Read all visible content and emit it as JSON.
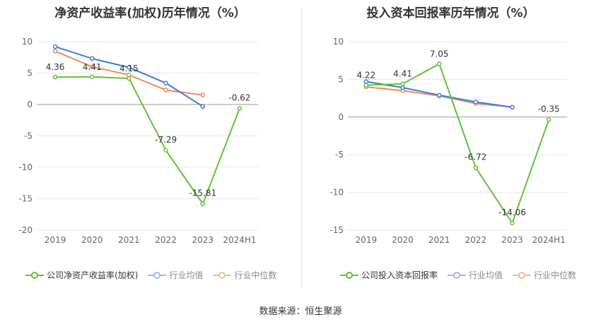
{
  "source_label": "数据来源：恒生聚源",
  "chart_data": [
    {
      "type": "line",
      "title": "净资产收益率(加权)历年情况（%）",
      "categories": [
        "2019",
        "2020",
        "2021",
        "2022",
        "2023",
        "2024H1"
      ],
      "ylim": [
        -20,
        10
      ],
      "yticks": [
        10,
        5,
        0,
        -5,
        -10,
        -15,
        -20
      ],
      "grid": true,
      "legend_position": "bottom",
      "series": [
        {
          "name": "公司净资产收益率(加权)",
          "color": "#5ec437",
          "values": [
            4.36,
            4.41,
            4.15,
            -7.29,
            -15.81,
            -0.62
          ],
          "labels": [
            "4.36",
            "4.41",
            "4.15",
            "-7.29",
            "-15.81",
            "-0.62"
          ]
        },
        {
          "name": "行业均值",
          "color": "#3b7ddd",
          "values": [
            9.2,
            7.3,
            5.9,
            3.4,
            -0.3,
            null
          ]
        },
        {
          "name": "行业中位数",
          "color": "#f08a5d",
          "values": [
            8.5,
            6.0,
            4.7,
            2.3,
            1.5,
            null
          ]
        }
      ]
    },
    {
      "type": "line",
      "title": "投入资本回报率历年情况（%）",
      "categories": [
        "2019",
        "2020",
        "2021",
        "2022",
        "2023",
        "2024H1"
      ],
      "ylim": [
        -15,
        10
      ],
      "yticks": [
        10,
        5,
        0,
        -5,
        -10,
        -15
      ],
      "grid": true,
      "legend_position": "bottom",
      "series": [
        {
          "name": "公司投入资本回报率",
          "color": "#5ec437",
          "values": [
            4.22,
            4.41,
            7.05,
            -6.72,
            -14.06,
            -0.35
          ],
          "labels": [
            "4.22",
            "4.41",
            "7.05",
            "-6.72",
            "-14.06",
            "-0.35"
          ]
        },
        {
          "name": "行业均值",
          "color": "#3b7ddd",
          "values": [
            4.7,
            3.9,
            2.9,
            2.0,
            1.3,
            null
          ]
        },
        {
          "name": "行业中位数",
          "color": "#f08a5d",
          "values": [
            4.0,
            3.5,
            2.8,
            1.8,
            1.3,
            null
          ]
        }
      ]
    }
  ]
}
